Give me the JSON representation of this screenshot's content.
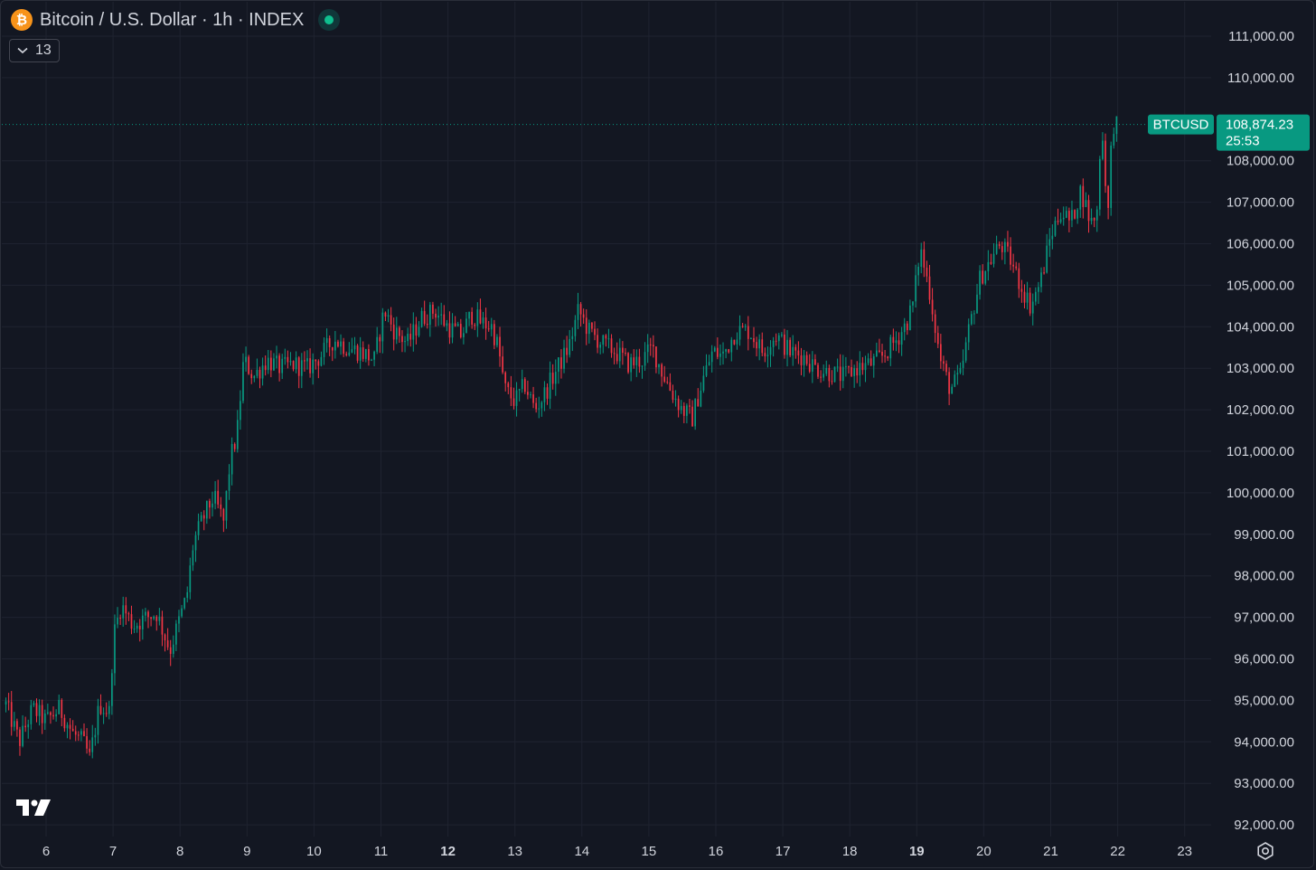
{
  "header": {
    "logo_glyph": "₿",
    "symbol_title": "Bitcoin / U.S. Dollar · 1h · INDEX",
    "indicator_count": "13"
  },
  "colors": {
    "background": "#131722",
    "grid": "#1f2330",
    "up": "#089981",
    "down": "#f23645",
    "axis_text": "#d1d4dc",
    "price_tag": "#089981"
  },
  "icons": {
    "logo": "tradingview-logo-icon",
    "chevron": "chevron-down-icon",
    "settings": "settings-gear-icon"
  },
  "price_tag": {
    "symbol": "BTCUSD",
    "price": "108,874.23",
    "countdown": "25:53"
  },
  "chart_data": {
    "type": "candlestick",
    "title": "Bitcoin / U.S. Dollar · 1h · INDEX",
    "interval": "1h",
    "ylim": [
      92000,
      111000
    ],
    "y_ticks": [
      "111,000.00",
      "110,000.00",
      "108,000.00",
      "107,000.00",
      "106,000.00",
      "105,000.00",
      "104,000.00",
      "103,000.00",
      "102,000.00",
      "101,000.00",
      "100,000.00",
      "99,000.00",
      "98,000.00",
      "97,000.00",
      "96,000.00",
      "95,000.00",
      "94,000.00",
      "93,000.00",
      "92,000.00"
    ],
    "y_tick_values": [
      111000,
      110000,
      108000,
      107000,
      106000,
      105000,
      104000,
      103000,
      102000,
      101000,
      100000,
      99000,
      98000,
      97000,
      96000,
      95000,
      94000,
      93000,
      92000
    ],
    "x_ticks": [
      "6",
      "7",
      "8",
      "9",
      "10",
      "11",
      "12",
      "13",
      "14",
      "15",
      "16",
      "17",
      "18",
      "19",
      "20",
      "21",
      "22",
      "23"
    ],
    "x_tick_days": [
      6,
      7,
      8,
      9,
      10,
      11,
      12,
      13,
      14,
      15,
      16,
      17,
      18,
      19,
      20,
      21,
      22,
      23
    ],
    "bold_x_ticks": [
      "12",
      "19"
    ],
    "x_range_days": [
      5.3,
      23.4
    ],
    "last_price": 108874.23,
    "close_path": [
      [
        5.4,
        94900
      ],
      [
        5.6,
        94000
      ],
      [
        5.8,
        94800
      ],
      [
        6.0,
        94500
      ],
      [
        6.2,
        94800
      ],
      [
        6.4,
        94200
      ],
      [
        6.55,
        94000
      ],
      [
        6.65,
        93600
      ],
      [
        6.8,
        94900
      ],
      [
        6.95,
        94700
      ],
      [
        7.0,
        96500
      ],
      [
        7.12,
        97300
      ],
      [
        7.3,
        96800
      ],
      [
        7.5,
        97000
      ],
      [
        7.65,
        97100
      ],
      [
        7.85,
        96200
      ],
      [
        8.0,
        97000
      ],
      [
        8.1,
        97500
      ],
      [
        8.2,
        98800
      ],
      [
        8.35,
        99400
      ],
      [
        8.5,
        99900
      ],
      [
        8.65,
        99300
      ],
      [
        8.75,
        100800
      ],
      [
        8.85,
        101400
      ],
      [
        8.95,
        103200
      ],
      [
        9.1,
        102800
      ],
      [
        9.3,
        103200
      ],
      [
        9.5,
        103000
      ],
      [
        9.7,
        103100
      ],
      [
        9.9,
        103000
      ],
      [
        10.1,
        103300
      ],
      [
        10.3,
        103700
      ],
      [
        10.5,
        103500
      ],
      [
        10.7,
        103400
      ],
      [
        10.9,
        103200
      ],
      [
        11.05,
        104400
      ],
      [
        11.2,
        103900
      ],
      [
        11.4,
        103600
      ],
      [
        11.6,
        104200
      ],
      [
        11.8,
        104400
      ],
      [
        12.0,
        104000
      ],
      [
        12.2,
        103800
      ],
      [
        12.35,
        104300
      ],
      [
        12.5,
        104100
      ],
      [
        12.65,
        104000
      ],
      [
        12.75,
        103500
      ],
      [
        12.85,
        102500
      ],
      [
        13.0,
        102200
      ],
      [
        13.15,
        102600
      ],
      [
        13.3,
        102000
      ],
      [
        13.45,
        102400
      ],
      [
        13.6,
        102900
      ],
      [
        13.8,
        103500
      ],
      [
        13.95,
        104400
      ],
      [
        14.1,
        103900
      ],
      [
        14.3,
        103600
      ],
      [
        14.5,
        103400
      ],
      [
        14.7,
        103100
      ],
      [
        14.9,
        103200
      ],
      [
        15.05,
        103500
      ],
      [
        15.2,
        102900
      ],
      [
        15.35,
        102400
      ],
      [
        15.5,
        102000
      ],
      [
        15.65,
        101800
      ],
      [
        15.8,
        102700
      ],
      [
        15.95,
        103400
      ],
      [
        16.1,
        103300
      ],
      [
        16.3,
        103900
      ],
      [
        16.5,
        103900
      ],
      [
        16.7,
        103400
      ],
      [
        16.9,
        103800
      ],
      [
        17.1,
        103400
      ],
      [
        17.3,
        103300
      ],
      [
        17.5,
        103000
      ],
      [
        17.7,
        102900
      ],
      [
        17.9,
        102800
      ],
      [
        18.1,
        103000
      ],
      [
        18.3,
        103100
      ],
      [
        18.5,
        103300
      ],
      [
        18.7,
        103700
      ],
      [
        18.85,
        104100
      ],
      [
        18.95,
        104600
      ],
      [
        19.05,
        105900
      ],
      [
        19.2,
        104800
      ],
      [
        19.35,
        103200
      ],
      [
        19.5,
        102500
      ],
      [
        19.65,
        102800
      ],
      [
        19.8,
        104100
      ],
      [
        19.95,
        105200
      ],
      [
        20.1,
        105600
      ],
      [
        20.25,
        106000
      ],
      [
        20.4,
        105600
      ],
      [
        20.55,
        105000
      ],
      [
        20.7,
        104500
      ],
      [
        20.85,
        105100
      ],
      [
        21.0,
        106200
      ],
      [
        21.15,
        106800
      ],
      [
        21.3,
        106500
      ],
      [
        21.45,
        107300
      ],
      [
        21.6,
        106500
      ],
      [
        21.7,
        106800
      ],
      [
        21.75,
        108900
      ],
      [
        21.8,
        108100
      ],
      [
        21.85,
        106500
      ],
      [
        21.92,
        108900
      ],
      [
        22.0,
        108874
      ]
    ]
  }
}
